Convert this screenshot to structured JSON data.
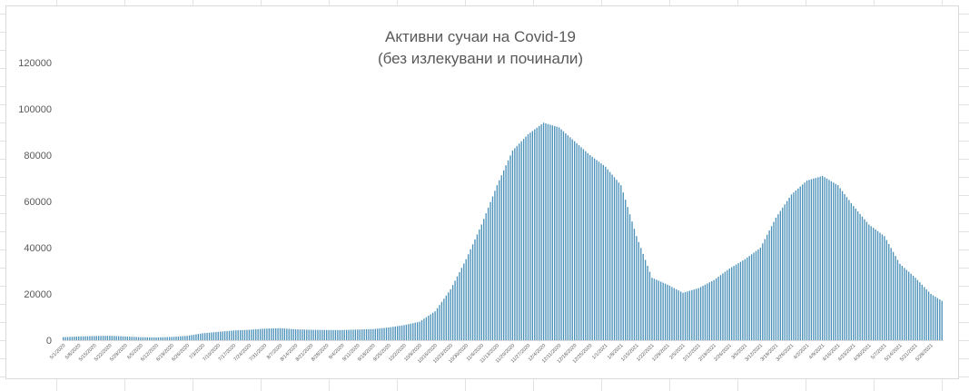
{
  "chart_data": {
    "type": "bar",
    "title": "Активни сучаи на Covid-19",
    "subtitle": "(без излекувани и починали)",
    "xlabel": "",
    "ylabel": "",
    "ylim": [
      0,
      120000
    ],
    "yticks": [
      0,
      20000,
      40000,
      60000,
      80000,
      100000,
      120000
    ],
    "grid": false,
    "legend": "none",
    "bar_color": "#4a90b8",
    "x_start": "2020-05-01",
    "x_end": "2021-06-02",
    "categories": [
      "5/1/2020",
      "5/8/2020",
      "5/15/2020",
      "5/22/2020",
      "5/29/2020",
      "6/5/2020",
      "6/12/2020",
      "6/19/2020",
      "6/26/2020",
      "7/3/2020",
      "7/10/2020",
      "7/17/2020",
      "7/24/2020",
      "7/31/2020",
      "8/7/2020",
      "8/14/2020",
      "8/21/2020",
      "8/28/2020",
      "9/4/2020",
      "9/11/2020",
      "9/18/2020",
      "9/25/2020",
      "10/2/2020",
      "10/9/2020",
      "10/16/2020",
      "10/23/2020",
      "10/30/2020",
      "11/6/2020",
      "11/13/2020",
      "11/20/2020",
      "11/27/2020",
      "12/4/2020",
      "12/11/2020",
      "12/18/2020",
      "12/25/2020",
      "1/1/2021",
      "1/8/2021",
      "1/15/2021",
      "1/22/2021",
      "1/29/2021",
      "2/5/2021",
      "2/12/2021",
      "2/19/2021",
      "2/26/2021",
      "3/5/2021",
      "3/12/2021",
      "3/19/2021",
      "3/26/2021",
      "4/2/2021",
      "4/9/2021",
      "4/16/2021",
      "4/23/2021",
      "4/30/2021",
      "5/7/2021",
      "5/14/2021",
      "5/21/2021",
      "5/28/2021"
    ],
    "values": [
      1300,
      1600,
      1800,
      1900,
      1600,
      1300,
      1200,
      1400,
      1900,
      3000,
      3600,
      4200,
      4500,
      5000,
      5200,
      4700,
      4500,
      4400,
      4400,
      4600,
      4800,
      5500,
      6500,
      8000,
      12500,
      22000,
      35000,
      50000,
      67000,
      82000,
      89000,
      94000,
      92000,
      86000,
      80000,
      75000,
      67000,
      45000,
      27000,
      24000,
      20500,
      22500,
      26000,
      31000,
      35000,
      40000,
      53000,
      63000,
      69000,
      71000,
      67000,
      58000,
      50000,
      45000,
      33000,
      27000,
      20000
    ],
    "series_end_value": 17000
  }
}
